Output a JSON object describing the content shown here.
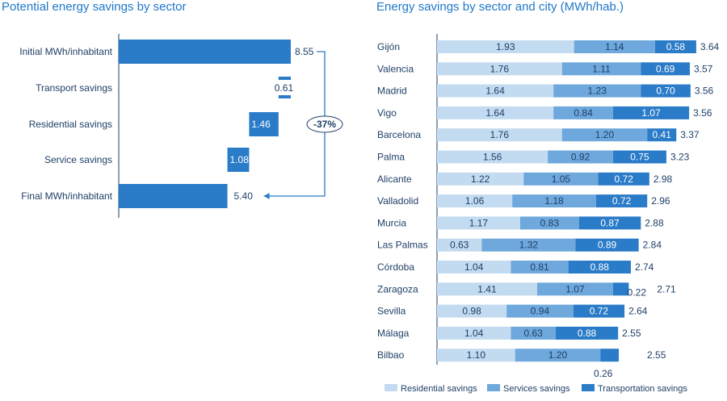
{
  "chart_data": [
    {
      "type": "bar",
      "title": "Potential energy savings by sector",
      "categories": [
        "Initial MWh/inhabitant",
        "Transport savings",
        "Residential savings",
        "Service savings",
        "Final MWh/inhabitant"
      ],
      "values": [
        8.55,
        0.61,
        1.46,
        1.08,
        5.4
      ],
      "value_labels": [
        "8.55",
        "0.61",
        "1.46",
        "1.08",
        "5.40"
      ],
      "annotation": "-37%",
      "xlim": [
        0,
        8.55
      ],
      "bar_color": "#2a7bc8"
    },
    {
      "type": "bar",
      "stacked": true,
      "orientation": "horizontal",
      "title": "Energy savings by sector and city (MWh/hab.)",
      "categories": [
        "Gijón",
        "Valencia",
        "Madrid",
        "Vigo",
        "Barcelona",
        "Palma",
        "Alicante",
        "Valladolid",
        "Murcia",
        "Las Palmas",
        "Córdoba",
        "Zaragoza",
        "Sevilla",
        "Málaga",
        "Bilbao"
      ],
      "series": [
        {
          "name": "Residential savings",
          "color": "#c3dbf0",
          "values": [
            1.93,
            1.76,
            1.64,
            1.64,
            1.76,
            1.56,
            1.22,
            1.06,
            1.17,
            0.63,
            1.04,
            1.41,
            0.98,
            1.04,
            1.1
          ],
          "labels": [
            "1.93",
            "1.76",
            "1.64",
            "1.64",
            "1.76",
            "1.56",
            "1.22",
            "1.06",
            "1.17",
            "0.63",
            "1.04",
            "1.41",
            "0.98",
            "1.04",
            "1.10"
          ]
        },
        {
          "name": "Services savings",
          "color": "#6ea8dc",
          "values": [
            1.14,
            1.11,
            1.23,
            0.84,
            1.2,
            0.92,
            1.05,
            1.18,
            0.83,
            1.32,
            0.81,
            1.07,
            0.94,
            0.63,
            1.2
          ],
          "labels": [
            "1.14",
            "1.11",
            "1.23",
            "0.84",
            "1.20",
            "0.92",
            "1.05",
            "1.18",
            "0.83",
            "1.32",
            "0.81",
            "1.07",
            "0.94",
            "0.63",
            "1.20"
          ]
        },
        {
          "name": "Transportation savings",
          "color": "#2a7bc8",
          "values": [
            0.58,
            0.69,
            0.7,
            1.07,
            0.41,
            0.75,
            0.72,
            0.72,
            0.87,
            0.89,
            0.88,
            0.22,
            0.72,
            0.88,
            0.26
          ],
          "labels": [
            "0.58",
            "0.69",
            "0.70",
            "1.07",
            "0.41",
            "0.75",
            "0.72",
            "0.72",
            "0.87",
            "0.89",
            "0.88",
            "0.22",
            "0.72",
            "0.88",
            "0.26"
          ]
        }
      ],
      "totals": [
        "3.64",
        "3.57",
        "3.56",
        "3.56",
        "3.37",
        "3.23",
        "2.98",
        "2.96",
        "2.88",
        "2.84",
        "2.74",
        "2.71",
        "2.64",
        "2.55",
        "2.55"
      ],
      "xlim": [
        0,
        3.64
      ],
      "legend": "bottom"
    }
  ]
}
